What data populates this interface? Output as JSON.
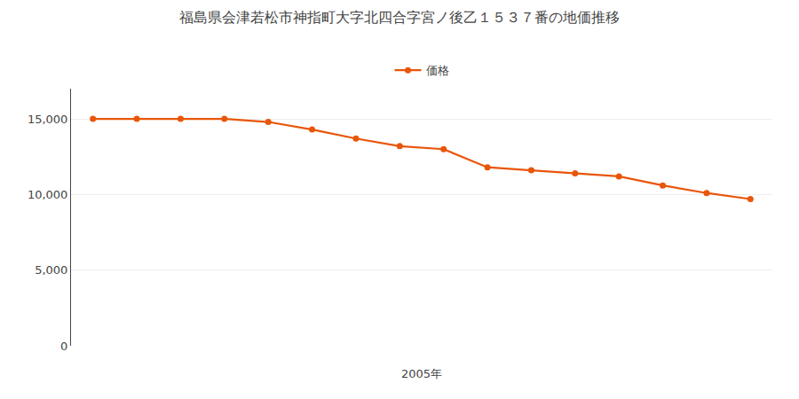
{
  "chart_data": {
    "type": "line",
    "title": "福島県会津若松市神指町大字北四合字宮ノ後乙１５３７番の地価推移",
    "xlabel": "2005年",
    "categories": [
      null,
      null,
      null,
      null,
      null,
      null,
      null,
      null,
      null,
      null,
      null,
      null,
      null,
      null,
      null,
      null
    ],
    "series": [
      {
        "name": "価格",
        "color": "#E8560A",
        "marker": "circle",
        "values": [
          15000,
          15000,
          15000,
          15000,
          14800,
          14300,
          13700,
          13200,
          13000,
          11800,
          11600,
          11400,
          11200,
          10600,
          10100,
          9700
        ]
      }
    ],
    "ylim": [
      0,
      17000
    ],
    "yticks": [
      0,
      {
        "value": 5000,
        "label": "5,000"
      },
      {
        "value": 10000,
        "label": "10,000"
      },
      {
        "value": 15000,
        "label": "15,000"
      }
    ],
    "grid": true,
    "legend": "top",
    "tick_labels": "y"
  }
}
